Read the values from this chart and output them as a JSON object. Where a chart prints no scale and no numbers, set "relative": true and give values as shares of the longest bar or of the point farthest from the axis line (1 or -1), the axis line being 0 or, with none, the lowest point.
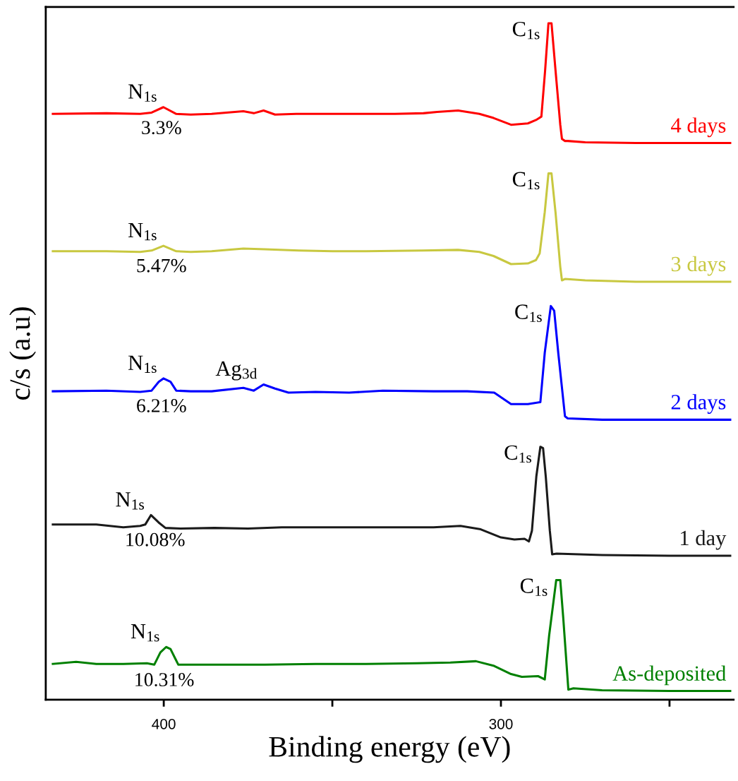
{
  "chart_data": {
    "type": "line",
    "relative": true,
    "xlabel": "Binding energy (eV)",
    "ylabel": "c/s (a.u)",
    "xlim": [
      435,
      231
    ],
    "xticks": [
      400,
      {
        "value": 350,
        "label": null
      },
      300,
      {
        "value": 250,
        "label": null
      }
    ],
    "tick_labels": "x",
    "grid": false,
    "legend": false,
    "marker": "none",
    "line_style": "solid",
    "series": [
      {
        "name": "4 days",
        "color": "#ff0000",
        "x": [
          432.9,
          417,
          407,
          403.6,
          400.1,
          396.3,
          392,
          385.8,
          376.4,
          373.3,
          370.4,
          367,
          360.7,
          350,
          340,
          331.5,
          323,
          318.9,
          312.7,
          306.4,
          302.2,
          297,
          292,
          289.6,
          288,
          286.9,
          285.9,
          285.0,
          283.8,
          282.4,
          281.9,
          281,
          280.2,
          275,
          260,
          240,
          232
        ],
        "values": [
          0.866,
          0.867,
          0.866,
          0.868,
          0.876,
          0.866,
          0.865,
          0.866,
          0.87,
          0.867,
          0.871,
          0.865,
          0.866,
          0.866,
          0.866,
          0.866,
          0.867,
          0.869,
          0.871,
          0.866,
          0.86,
          0.85,
          0.852,
          0.857,
          0.862,
          0.93,
          1.0,
          1.0,
          0.93,
          0.85,
          0.829,
          0.826,
          0.826,
          0.824,
          0.823,
          0.823,
          0.823
        ]
      },
      {
        "name": "3 days",
        "color": "#c8c840",
        "x": [
          432.9,
          417,
          407,
          403.6,
          400.1,
          396.3,
          392,
          385.8,
          376.4,
          370,
          360,
          350,
          340,
          323,
          312.7,
          306.4,
          302.2,
          297,
          292,
          289.6,
          288.5,
          287,
          285.9,
          285.0,
          283.8,
          282.4,
          281.9,
          281,
          275,
          260,
          232
        ],
        "values": [
          0.663,
          0.663,
          0.662,
          0.664,
          0.671,
          0.663,
          0.662,
          0.663,
          0.667,
          0.666,
          0.664,
          0.663,
          0.663,
          0.664,
          0.665,
          0.662,
          0.656,
          0.644,
          0.645,
          0.65,
          0.66,
          0.721,
          0.778,
          0.778,
          0.72,
          0.64,
          0.62,
          0.622,
          0.62,
          0.618,
          0.618
        ]
      },
      {
        "name": "2 days",
        "color": "#0000ff",
        "x": [
          432.9,
          417,
          407,
          403.6,
          401.5,
          400.1,
          398,
          396.3,
          392,
          385.8,
          376.4,
          373.3,
          370.4,
          367,
          363,
          355,
          345,
          335,
          320,
          310,
          302,
          297,
          292,
          288.3,
          287,
          285.2,
          284.2,
          283,
          281,
          280.2,
          270,
          250,
          232
        ],
        "values": [
          0.456,
          0.457,
          0.455,
          0.457,
          0.47,
          0.475,
          0.47,
          0.457,
          0.456,
          0.456,
          0.461,
          0.457,
          0.466,
          0.46,
          0.454,
          0.455,
          0.454,
          0.457,
          0.456,
          0.456,
          0.454,
          0.437,
          0.437,
          0.44,
          0.513,
          0.582,
          0.575,
          0.513,
          0.419,
          0.416,
          0.414,
          0.414,
          0.414
        ]
      },
      {
        "name": "1 day",
        "color": "#1a1a1a",
        "x": [
          432.9,
          420,
          412,
          407,
          405.5,
          403.8,
          401.5,
          399.5,
          395,
          385,
          375,
          365,
          350,
          335,
          320,
          312,
          306,
          300,
          296,
          293,
          291.7,
          290.8,
          289.5,
          288.3,
          287.5,
          286.7,
          285.5,
          284.8,
          283.5,
          270,
          250,
          232
        ],
        "values": [
          0.259,
          0.259,
          0.255,
          0.257,
          0.259,
          0.273,
          0.262,
          0.254,
          0.253,
          0.254,
          0.253,
          0.255,
          0.255,
          0.255,
          0.255,
          0.257,
          0.252,
          0.24,
          0.237,
          0.238,
          0.234,
          0.25,
          0.33,
          0.374,
          0.372,
          0.33,
          0.25,
          0.215,
          0.216,
          0.214,
          0.213,
          0.213
        ]
      },
      {
        "name": "As-deposited",
        "color": "#008000",
        "x": [
          432.9,
          426,
          420,
          412,
          405,
          402.8,
          401,
          399.3,
          398,
          396.5,
          395.7,
          385,
          370,
          355,
          340,
          325,
          315,
          307.4,
          302,
          297,
          293.8,
          289,
          287,
          285.7,
          283.6,
          282.4,
          281.5,
          280,
          278.5,
          270,
          250,
          232
        ],
        "values": [
          0.053,
          0.056,
          0.053,
          0.053,
          0.054,
          0.052,
          0.07,
          0.078,
          0.075,
          0.06,
          0.052,
          0.052,
          0.052,
          0.053,
          0.053,
          0.054,
          0.055,
          0.057,
          0.05,
          0.038,
          0.034,
          0.035,
          0.03,
          0.095,
          0.177,
          0.177,
          0.12,
          0.015,
          0.017,
          0.014,
          0.013,
          0.013
        ]
      }
    ],
    "annotations": [
      {
        "text": "N$_{1s}$",
        "x": 400.1,
        "y": 0.876
      },
      {
        "text": "3.3%",
        "x": 403.6,
        "y": 0.868
      },
      {
        "text": "C$_{1s}$",
        "x": 285.9,
        "y": 1.0
      },
      {
        "text": "N$_{1s}$",
        "x": 400.1,
        "y": 0.671
      },
      {
        "text": "5.47%",
        "x": 403.6,
        "y": 0.664
      },
      {
        "text": "C$_{1s}$",
        "x": 285.9,
        "y": 0.778
      },
      {
        "text": "N$_{1s}$",
        "x": 400.1,
        "y": 0.475
      },
      {
        "text": "Ag$_{3d}$",
        "x": 370.4,
        "y": 0.466
      },
      {
        "text": "6.21%",
        "x": 403.6,
        "y": 0.457
      },
      {
        "text": "C$_{1s}$",
        "x": 285.2,
        "y": 0.582
      },
      {
        "text": "N$_{1s}$",
        "x": 403.8,
        "y": 0.273
      },
      {
        "text": "10.08%",
        "x": 405.5,
        "y": 0.259
      },
      {
        "text": "C$_{1s}$",
        "x": 288.3,
        "y": 0.374
      },
      {
        "text": "N$_{1s}$",
        "x": 399.3,
        "y": 0.078
      },
      {
        "text": "10.31%",
        "x": 402.8,
        "y": 0.052
      },
      {
        "text": "C$_{1s}$",
        "x": 283.6,
        "y": 0.177
      }
    ]
  }
}
